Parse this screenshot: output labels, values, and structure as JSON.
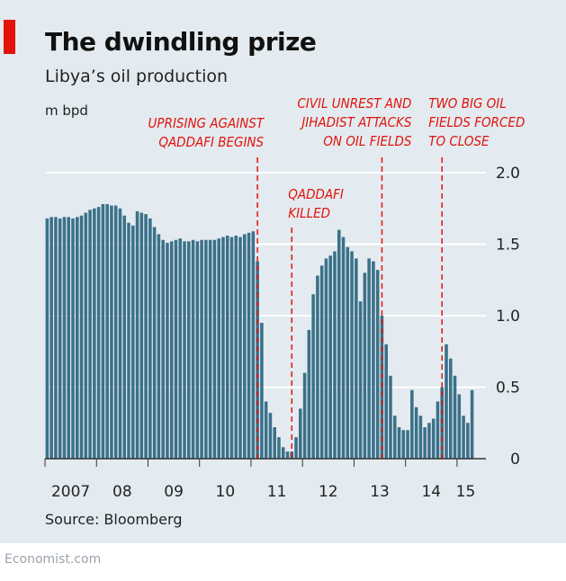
{
  "header": {
    "title": "The dwindling prize",
    "subtitle": "Libya’s oil production",
    "unit": "m bpd"
  },
  "footer": {
    "source": "Source: Bloomberg",
    "brand": "Economist.com"
  },
  "colors": {
    "background": "#e3ebf0",
    "bars": "#3b7189",
    "accent": "#e3120b",
    "grid": "#ffffff"
  },
  "chart_data": {
    "type": "bar",
    "title": "The dwindling prize",
    "subtitle": "Libya’s oil production",
    "ylabel": "m bpd",
    "ylim": [
      0,
      2.0
    ],
    "yticks": [
      0,
      0.5,
      1.0,
      1.5,
      2.0
    ],
    "ytick_labels": [
      "0",
      "0.5",
      "1.0",
      "1.5",
      "2.0"
    ],
    "xtick_labels": [
      "2007",
      "08",
      "09",
      "10",
      "11",
      "12",
      "13",
      "14",
      "15"
    ],
    "x_start": "2007-01",
    "frequency": "monthly",
    "values": [
      1.68,
      1.69,
      1.69,
      1.68,
      1.69,
      1.69,
      1.68,
      1.69,
      1.7,
      1.72,
      1.74,
      1.75,
      1.76,
      1.78,
      1.78,
      1.77,
      1.77,
      1.75,
      1.7,
      1.65,
      1.63,
      1.73,
      1.72,
      1.71,
      1.68,
      1.62,
      1.57,
      1.53,
      1.51,
      1.52,
      1.53,
      1.54,
      1.52,
      1.52,
      1.53,
      1.52,
      1.53,
      1.53,
      1.53,
      1.53,
      1.54,
      1.55,
      1.56,
      1.55,
      1.56,
      1.55,
      1.57,
      1.58,
      1.59,
      1.38,
      0.95,
      0.4,
      0.32,
      0.22,
      0.15,
      0.08,
      0.05,
      0.05,
      0.15,
      0.35,
      0.6,
      0.9,
      1.15,
      1.28,
      1.35,
      1.4,
      1.42,
      1.45,
      1.6,
      1.55,
      1.48,
      1.45,
      1.4,
      1.1,
      1.3,
      1.4,
      1.38,
      1.32,
      1.0,
      0.8,
      0.58,
      0.3,
      0.22,
      0.2,
      0.2,
      0.48,
      0.36,
      0.3,
      0.22,
      0.25,
      0.28,
      0.4,
      0.5,
      0.8,
      0.7,
      0.58,
      0.45,
      0.3,
      0.25,
      0.48
    ],
    "annotations": [
      {
        "lines": [
          "UPRISING AGAINST",
          "QADDAFI BEGINS"
        ],
        "date": "2011-02"
      },
      {
        "lines": [
          "QADDAFI",
          "KILLED"
        ],
        "date": "2011-10"
      },
      {
        "lines": [
          "CIVIL UNREST AND",
          "JIHADIST ATTACKS",
          "ON OIL FIELDS"
        ],
        "date": "2013-07"
      },
      {
        "lines": [
          "TWO BIG OIL",
          "FIELDS FORCED",
          "TO CLOSE"
        ],
        "date": "2014-09"
      }
    ]
  }
}
